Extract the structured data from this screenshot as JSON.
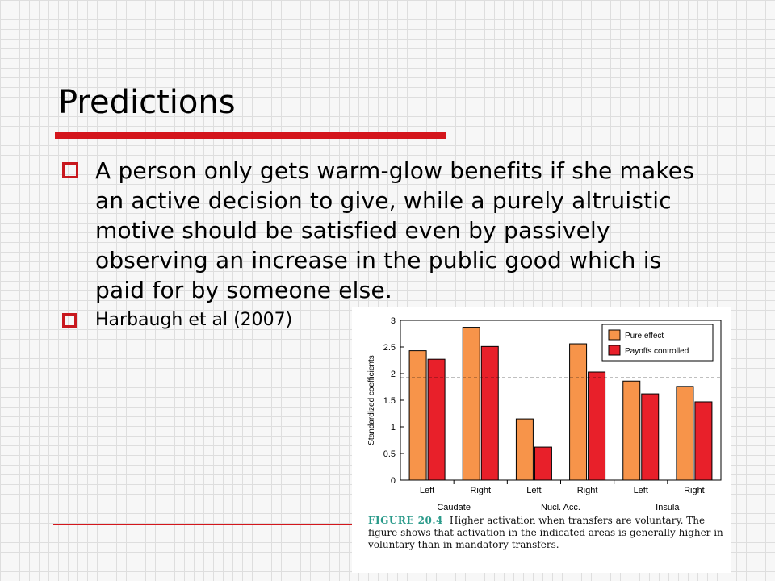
{
  "slide": {
    "title": "Predictions",
    "bullets": [
      "A person only gets warm-glow benefits if she makes an active decision to give, while a purely altruistic motive should be satisfied even by passively observing an increase in the public good which is paid for by someone else.",
      "Harbaugh et al (2007)"
    ]
  },
  "colors": {
    "accent": "#d4161c",
    "pure_effect": "#f7944a",
    "payoffs_controlled": "#e8202a"
  },
  "figure": {
    "caption_label": "FIGURE 20.4",
    "caption_text": "Higher activation when transfers are voluntary. The figure shows that activation in the indicated areas is generally higher in voluntary than in mandatory transfers."
  },
  "chart_data": {
    "type": "bar",
    "ylabel": "Standardized coefficients",
    "ylim": [
      0,
      3
    ],
    "yticks": [
      "0",
      "0.5",
      "1",
      "1.5",
      "2",
      "2.5",
      "3"
    ],
    "categories": [
      "Left",
      "Right",
      "Left",
      "Right",
      "Left",
      "Right"
    ],
    "groups": [
      "Caudate",
      "Nucl. Acc.",
      "Insula"
    ],
    "threshold": 1.92,
    "legend_position": "top-right",
    "series": [
      {
        "name": "Pure effect",
        "values": [
          2.43,
          2.87,
          1.15,
          2.56,
          1.86,
          1.76
        ]
      },
      {
        "name": "Payoffs controlled",
        "values": [
          2.27,
          2.51,
          0.62,
          2.03,
          1.62,
          1.47
        ]
      }
    ]
  }
}
